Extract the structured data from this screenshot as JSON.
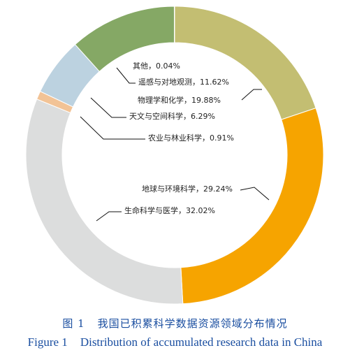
{
  "chart_data": {
    "type": "pie",
    "style": "donut",
    "start": "top",
    "direction": "clockwise",
    "segments": [
      {
        "name": "物理学和化学",
        "value": 19.88,
        "label": "物理学和化学，19.88%",
        "color": "#c3be72"
      },
      {
        "name": "地球与环境科学",
        "value": 29.24,
        "label": "地球与环境科学，29.24%",
        "color": "#f6a400"
      },
      {
        "name": "生命科学与医学",
        "value": 32.02,
        "label": "生命科学与医学，32.02%",
        "color": "#dcdddd"
      },
      {
        "name": "农业与林业科学",
        "value": 0.91,
        "label": "农业与林业科学，0.91%",
        "color": "#f2c396"
      },
      {
        "name": "天文与空间科学",
        "value": 6.29,
        "label": "天文与空间科学，6.29%",
        "color": "#bcd2e0"
      },
      {
        "name": "遥感与对地观测",
        "value": 11.62,
        "label": "遥感与对地观测，11.62%",
        "color": "#85a865"
      },
      {
        "name": "其他",
        "value": 0.04,
        "label": "其他，0.04%",
        "color": "#e8735a"
      }
    ]
  },
  "caption": {
    "zh_num": "图 1",
    "zh_text": "我国已积累科学数据资源领域分布情况",
    "en_num": "Figure 1",
    "en_text": "Distribution of accumulated research data in China"
  }
}
